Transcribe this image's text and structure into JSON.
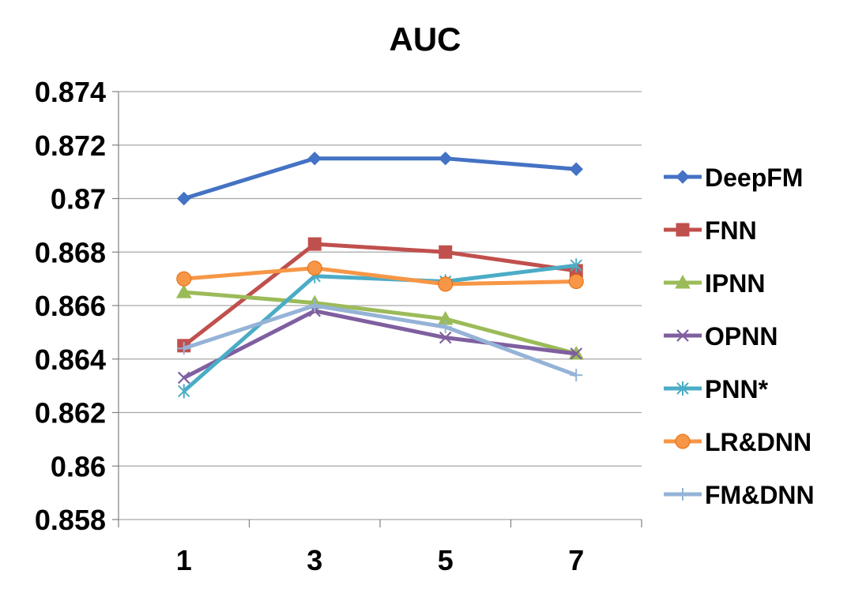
{
  "chart_data": {
    "type": "line",
    "title": "AUC",
    "xlabel": "",
    "ylabel": "",
    "x": [
      1,
      3,
      5,
      7
    ],
    "ylim": [
      0.858,
      0.874
    ],
    "yticks": [
      0.858,
      0.86,
      0.862,
      0.864,
      0.866,
      0.868,
      0.87,
      0.872,
      0.874
    ],
    "ytick_labels": [
      "0.858",
      "0.86",
      "0.862",
      "0.864",
      "0.866",
      "0.868",
      "0.87",
      "0.872",
      "0.874"
    ],
    "xtick_labels": [
      "1",
      "3",
      "5",
      "7"
    ],
    "grid": "horizontal",
    "legend_position": "right",
    "series": [
      {
        "name": "DeepFM",
        "values": [
          0.87,
          0.8715,
          0.8715,
          0.8711
        ],
        "color": "#4472C4",
        "marker": "diamond"
      },
      {
        "name": "FNN",
        "values": [
          0.8645,
          0.8683,
          0.868,
          0.8673
        ],
        "color": "#C0504D",
        "marker": "square"
      },
      {
        "name": "IPNN",
        "values": [
          0.8665,
          0.8661,
          0.8655,
          0.8642
        ],
        "color": "#9BBB59",
        "marker": "triangle"
      },
      {
        "name": "OPNN",
        "values": [
          0.8633,
          0.8658,
          0.8648,
          0.8642
        ],
        "color": "#7F5F9F",
        "marker": "x"
      },
      {
        "name": "PNN*",
        "values": [
          0.8628,
          0.8671,
          0.8669,
          0.8675
        ],
        "color": "#4BACC6",
        "marker": "star"
      },
      {
        "name": "LR&DNN",
        "values": [
          0.867,
          0.8674,
          0.8668,
          0.8669
        ],
        "color": "#F79646",
        "marker": "circle"
      },
      {
        "name": "FM&DNN",
        "values": [
          0.8644,
          0.866,
          0.8652,
          0.8634
        ],
        "color": "#95B3D7",
        "marker": "plus"
      }
    ]
  }
}
